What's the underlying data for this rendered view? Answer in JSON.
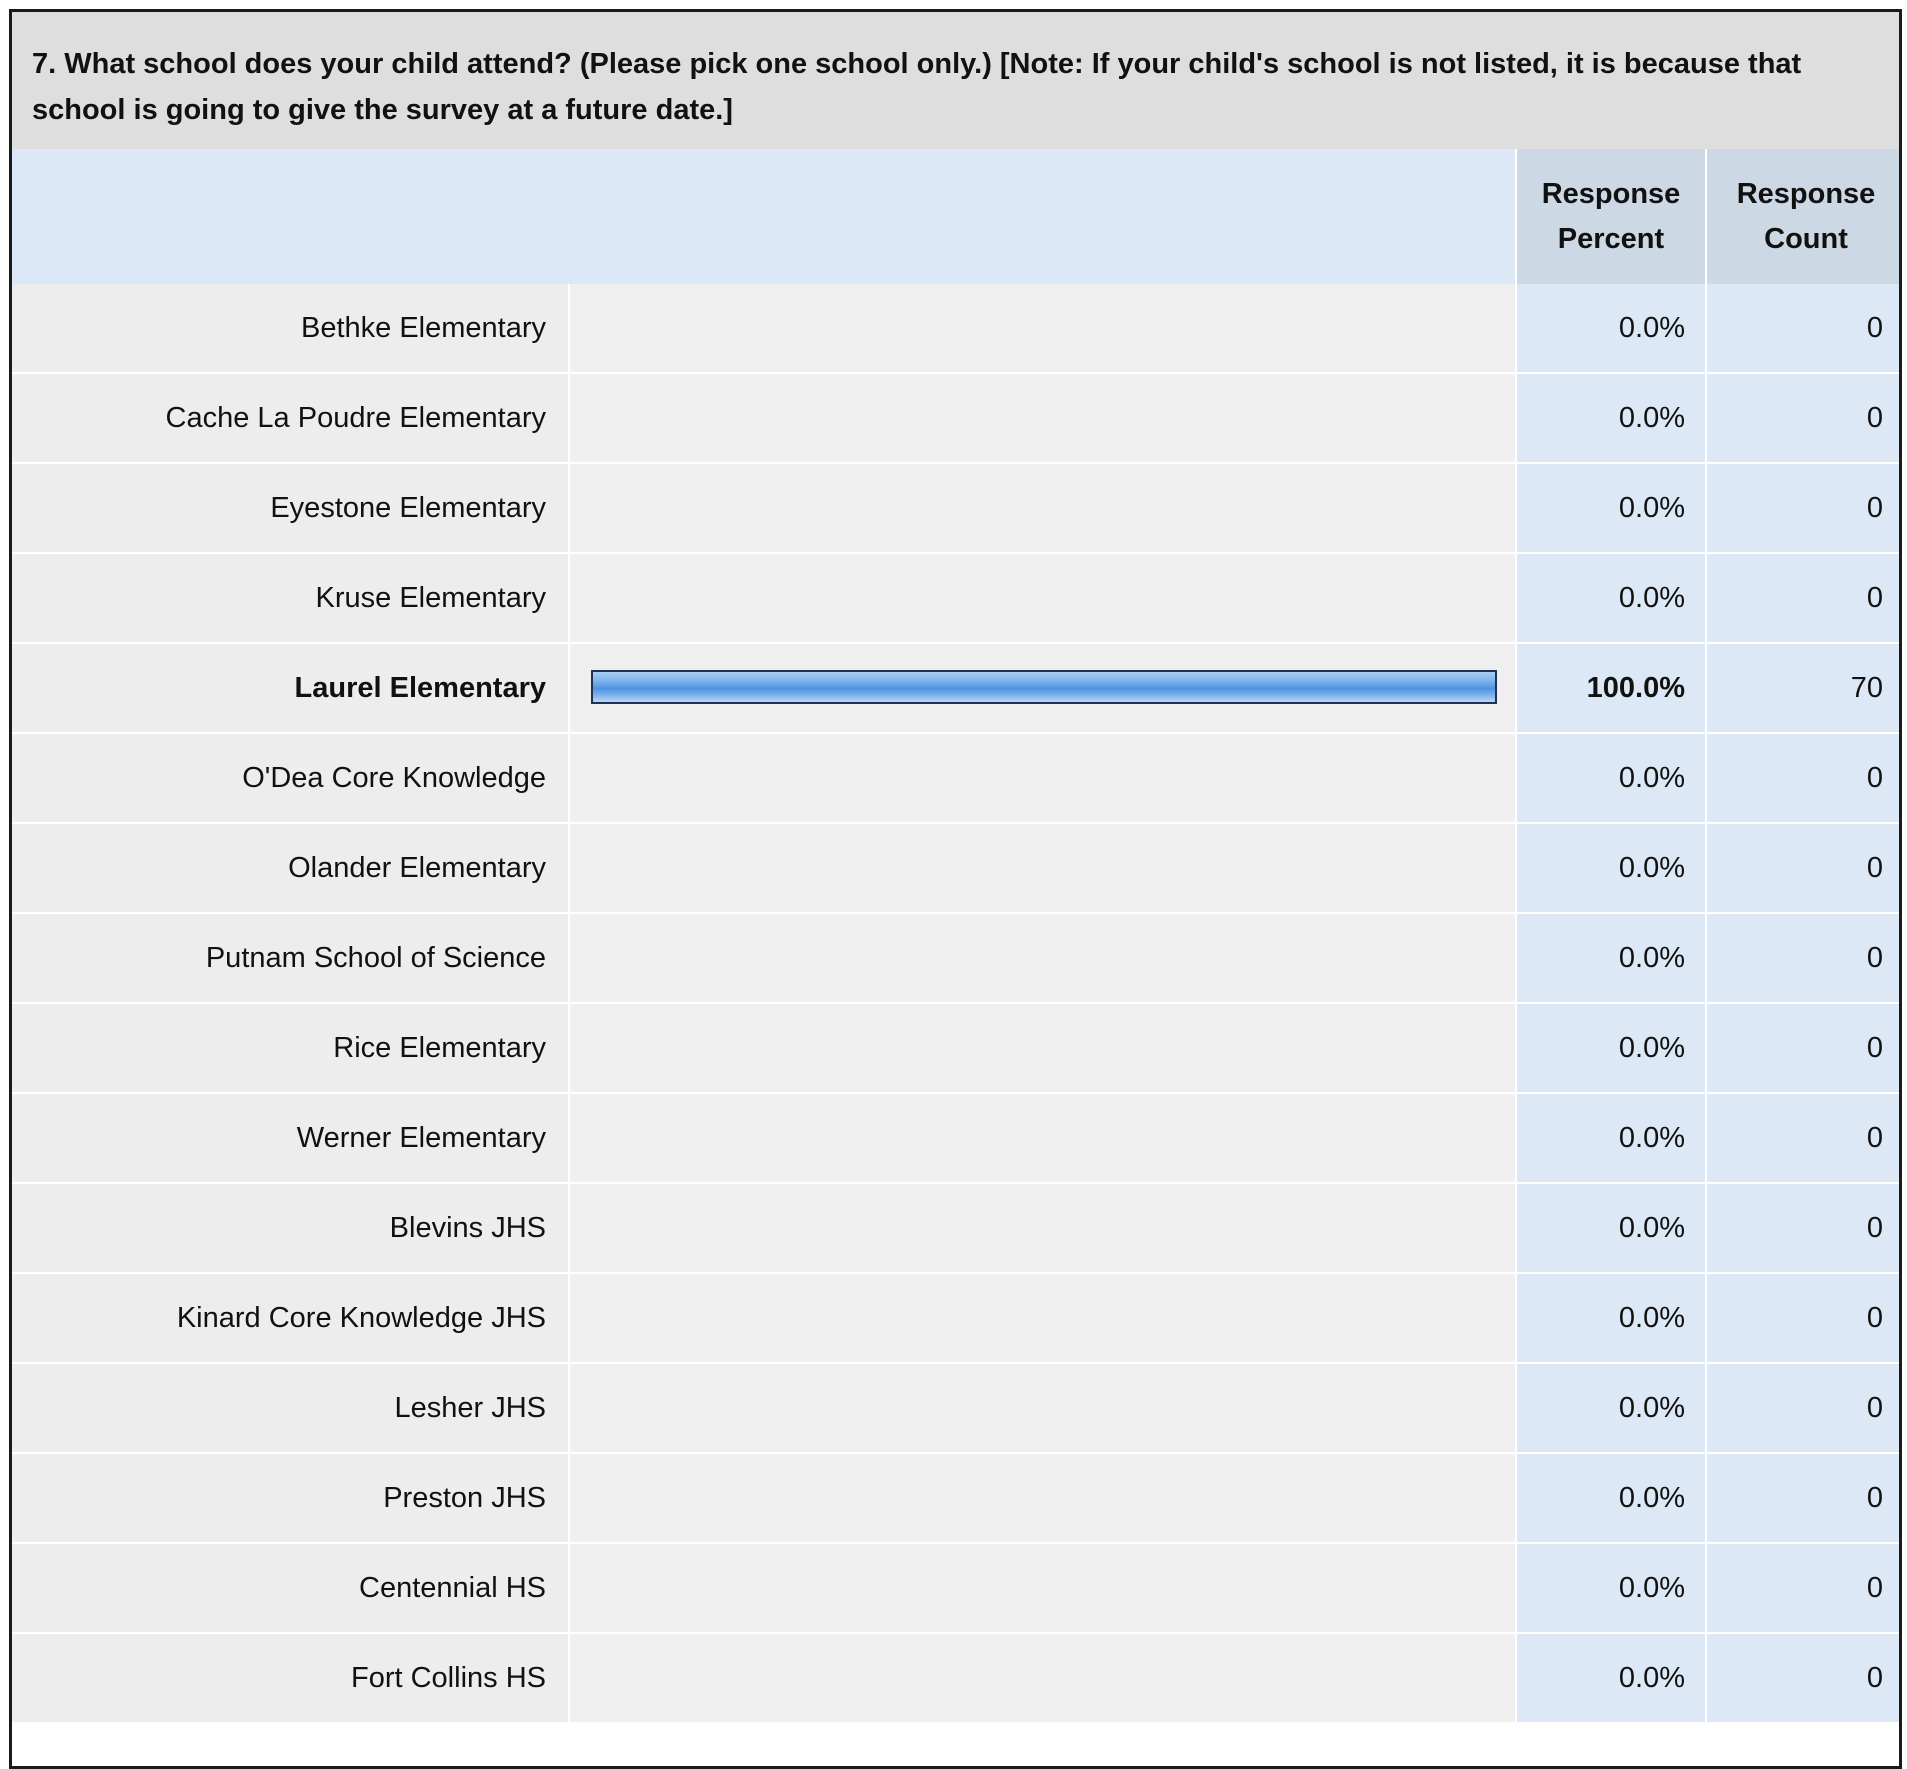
{
  "question": "7. What school does your child attend? (Please pick one school only.) [Note: If your child's school is not listed, it is because that school is going to give the survey at a future date.]",
  "columns": {
    "percent": "Response Percent",
    "count": "Response Count"
  },
  "colors": {
    "bar": "#4e93df",
    "bar_border": "#1f3350",
    "header_bg": "#dedede",
    "value_col_bg": "#dce8f5"
  },
  "chart_data": {
    "type": "bar",
    "orientation": "horizontal",
    "title": "7. What school does your child attend? (Please pick one school only.) [Note: If your child's school is not listed, it is because that school is going to give the survey at a future date.]",
    "xlim": [
      0,
      100
    ],
    "categories": [
      "Bethke Elementary",
      "Cache La Poudre Elementary",
      "Eyestone Elementary",
      "Kruse Elementary",
      "Laurel Elementary",
      "O'Dea Core Knowledge",
      "Olander Elementary",
      "Putnam School of Science",
      "Rice Elementary",
      "Werner Elementary",
      "Blevins JHS",
      "Kinard Core Knowledge JHS",
      "Lesher JHS",
      "Preston JHS",
      "Centennial HS",
      "Fort Collins HS"
    ],
    "rows": [
      {
        "label": "Bethke Elementary",
        "percent": 0.0,
        "percent_text": "0.0%",
        "count": "0",
        "bold": false
      },
      {
        "label": "Cache La Poudre Elementary",
        "percent": 0.0,
        "percent_text": "0.0%",
        "count": "0",
        "bold": false
      },
      {
        "label": "Eyestone Elementary",
        "percent": 0.0,
        "percent_text": "0.0%",
        "count": "0",
        "bold": false
      },
      {
        "label": "Kruse Elementary",
        "percent": 0.0,
        "percent_text": "0.0%",
        "count": "0",
        "bold": false
      },
      {
        "label": "Laurel Elementary",
        "percent": 100.0,
        "percent_text": "100.0%",
        "count": "70",
        "bold": true
      },
      {
        "label": "O'Dea Core Knowledge",
        "percent": 0.0,
        "percent_text": "0.0%",
        "count": "0",
        "bold": false
      },
      {
        "label": "Olander Elementary",
        "percent": 0.0,
        "percent_text": "0.0%",
        "count": "0",
        "bold": false
      },
      {
        "label": "Putnam School of Science",
        "percent": 0.0,
        "percent_text": "0.0%",
        "count": "0",
        "bold": false
      },
      {
        "label": "Rice Elementary",
        "percent": 0.0,
        "percent_text": "0.0%",
        "count": "0",
        "bold": false
      },
      {
        "label": "Werner Elementary",
        "percent": 0.0,
        "percent_text": "0.0%",
        "count": "0",
        "bold": false
      },
      {
        "label": "Blevins JHS",
        "percent": 0.0,
        "percent_text": "0.0%",
        "count": "0",
        "bold": false
      },
      {
        "label": "Kinard Core Knowledge JHS",
        "percent": 0.0,
        "percent_text": "0.0%",
        "count": "0",
        "bold": false
      },
      {
        "label": "Lesher JHS",
        "percent": 0.0,
        "percent_text": "0.0%",
        "count": "0",
        "bold": false
      },
      {
        "label": "Preston JHS",
        "percent": 0.0,
        "percent_text": "0.0%",
        "count": "0",
        "bold": false
      },
      {
        "label": "Centennial HS",
        "percent": 0.0,
        "percent_text": "0.0%",
        "count": "0",
        "bold": false
      },
      {
        "label": "Fort Collins HS",
        "percent": 0.0,
        "percent_text": "0.0%",
        "count": "0",
        "bold": false
      }
    ]
  }
}
